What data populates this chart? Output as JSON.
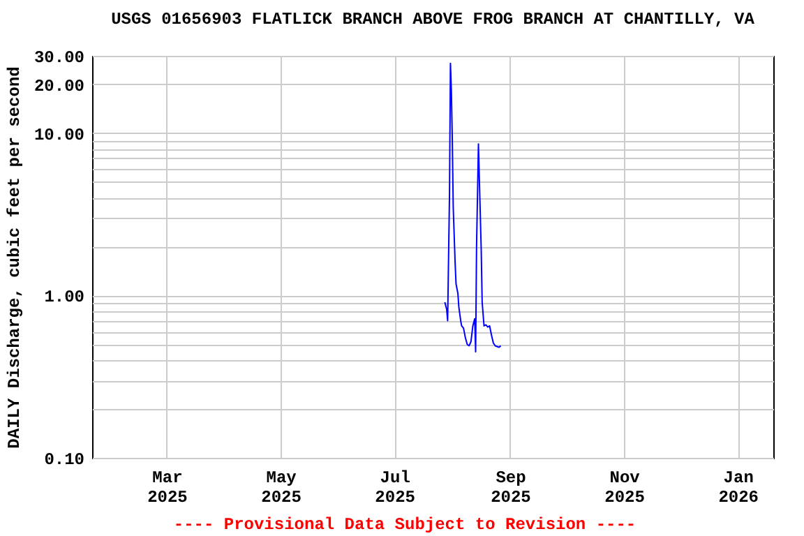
{
  "chart_data": {
    "type": "line",
    "title": "USGS 01656903 FLATLICK BRANCH ABOVE FROG BRANCH AT CHANTILLY, VA",
    "ylabel": "DAILY Discharge, cubic feet per second",
    "x": [
      "2025-07-28",
      "2025-07-29",
      "2025-07-29T12:00",
      "2025-07-30T12:00",
      "2025-07-31",
      "2025-07-31T12:00",
      "2025-08-01",
      "2025-08-01T12:00",
      "2025-08-02T12:00",
      "2025-08-03",
      "2025-08-04",
      "2025-08-04T12:00",
      "2025-08-05T12:00",
      "2025-08-06",
      "2025-08-07",
      "2025-08-08",
      "2025-08-09",
      "2025-08-10",
      "2025-08-11",
      "2025-08-12",
      "2025-08-13",
      "2025-08-13T12:00",
      "2025-08-14",
      "2025-08-15",
      "2025-08-15T12:00",
      "2025-08-16T12:00",
      "2025-08-17",
      "2025-08-18",
      "2025-08-19",
      "2025-08-20",
      "2025-08-21",
      "2025-08-22",
      "2025-08-23",
      "2025-08-24",
      "2025-08-25",
      "2025-08-26",
      "2025-08-27"
    ],
    "series": [
      {
        "color": "#0000ff",
        "values": [
          0.91,
          0.82,
          0.7,
          4.2,
          27,
          18.3,
          9.1,
          3.5,
          1.6,
          1.18,
          1.03,
          0.85,
          0.7,
          0.65,
          0.63,
          0.55,
          0.5,
          0.49,
          0.52,
          0.65,
          0.72,
          0.45,
          2.0,
          8.6,
          5.2,
          1.9,
          0.91,
          0.65,
          0.66,
          0.64,
          0.65,
          0.57,
          0.51,
          0.49,
          0.485,
          0.48,
          0.49
        ]
      }
    ],
    "log": "y",
    "ylim": [
      0.1,
      30
    ],
    "yticks": [
      {
        "value": 0.1,
        "label": "0.10"
      },
      {
        "value": 0.2,
        "label": null
      },
      {
        "value": 0.3,
        "label": null
      },
      {
        "value": 0.4,
        "label": null
      },
      {
        "value": 0.5,
        "label": null
      },
      {
        "value": 0.6,
        "label": null
      },
      {
        "value": 0.7,
        "label": null
      },
      {
        "value": 0.8,
        "label": null
      },
      {
        "value": 0.9,
        "label": null
      },
      {
        "value": 1,
        "label": "1.00"
      },
      {
        "value": 2,
        "label": null
      },
      {
        "value": 3,
        "label": null
      },
      {
        "value": 4,
        "label": null
      },
      {
        "value": 5,
        "label": null
      },
      {
        "value": 6,
        "label": null
      },
      {
        "value": 7,
        "label": null
      },
      {
        "value": 8,
        "label": null
      },
      {
        "value": 9,
        "label": null
      },
      {
        "value": 10,
        "label": "10.00"
      },
      {
        "value": 20,
        "label": "20.00"
      },
      {
        "value": 30,
        "label": "30.00"
      }
    ],
    "xlim": [
      "2025-01-20",
      "2026-01-20"
    ],
    "xticks": [
      {
        "value": "2025-03-01",
        "label": "Mar 2025"
      },
      {
        "value": "2025-05-01",
        "label": "May 2025"
      },
      {
        "value": "2025-07-01",
        "label": "Jul 2025"
      },
      {
        "value": "2025-09-01",
        "label": "Sep 2025"
      },
      {
        "value": "2025-11-01",
        "label": "Nov 2025"
      },
      {
        "value": "2026-01-01",
        "label": "Jan 2026"
      }
    ],
    "grid": true,
    "marker": "none",
    "line_style": "solid",
    "annotations": [
      "---- Provisional Data Subject to Revision ----"
    ]
  }
}
